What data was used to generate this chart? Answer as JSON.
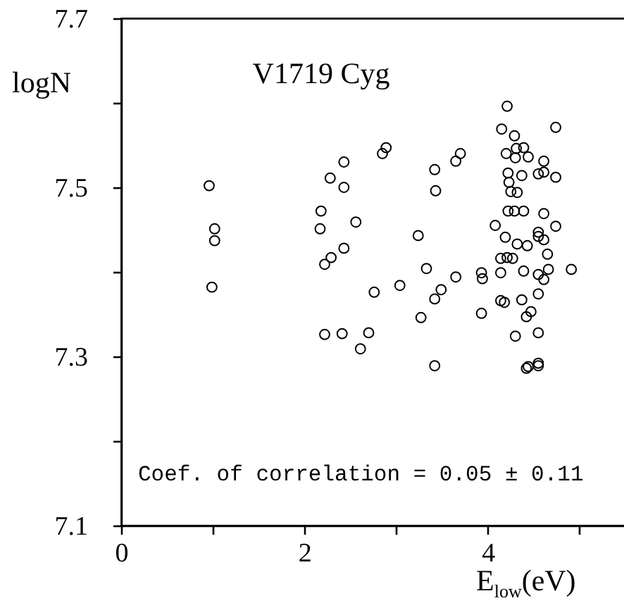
{
  "chart_data": {
    "type": "scatter",
    "title": "V1719 Cyg",
    "xlabel": "E$_{low}$(eV)",
    "ylabel": "logN",
    "annotations": [
      "Coef. of correlation = 0.05 ± 0.11"
    ],
    "x": [
      0.96,
      1.02,
      1.02,
      0.99,
      2.18,
      2.17,
      2.22,
      2.29,
      2.28,
      2.43,
      2.43,
      2.43,
      2.56,
      2.22,
      2.41,
      2.7,
      2.61,
      2.76,
      2.85,
      2.89,
      3.04,
      3.24,
      3.27,
      3.33,
      3.42,
      3.43,
      3.42,
      3.42,
      3.65,
      3.7,
      3.49,
      3.65,
      3.93,
      3.94,
      3.93,
      4.08,
      4.15,
      4.21,
      4.29,
      4.2,
      4.31,
      4.39,
      4.44,
      4.3,
      4.22,
      4.37,
      4.23,
      4.25,
      4.32,
      4.55,
      4.61,
      4.61,
      4.74,
      4.74,
      4.22,
      4.29,
      4.39,
      4.61,
      4.74,
      4.19,
      4.32,
      4.43,
      4.55,
      4.55,
      4.61,
      4.65,
      4.14,
      4.21,
      4.27,
      4.14,
      4.39,
      4.55,
      4.61,
      4.66,
      4.91,
      4.14,
      4.18,
      4.37,
      4.55,
      4.47,
      4.42,
      4.3,
      4.55,
      4.42,
      4.44,
      4.55,
      4.55
    ],
    "series": [
      {
        "color": "#000000",
        "values": [
          7.502,
          7.451,
          7.437,
          7.382,
          7.472,
          7.451,
          7.409,
          7.417,
          7.511,
          7.53,
          7.5,
          7.428,
          7.459,
          7.326,
          7.327,
          7.328,
          7.309,
          7.376,
          7.54,
          7.547,
          7.384,
          7.443,
          7.346,
          7.404,
          7.521,
          7.496,
          7.368,
          7.289,
          7.531,
          7.54,
          7.379,
          7.394,
          7.399,
          7.392,
          7.351,
          7.455,
          7.569,
          7.596,
          7.561,
          7.54,
          7.546,
          7.547,
          7.536,
          7.535,
          7.517,
          7.514,
          7.506,
          7.495,
          7.494,
          7.516,
          7.518,
          7.531,
          7.571,
          7.512,
          7.472,
          7.472,
          7.472,
          7.469,
          7.454,
          7.441,
          7.433,
          7.431,
          7.447,
          7.442,
          7.438,
          7.421,
          7.416,
          7.417,
          7.416,
          7.399,
          7.401,
          7.397,
          7.391,
          7.403,
          7.403,
          7.366,
          7.364,
          7.367,
          7.374,
          7.353,
          7.347,
          7.324,
          7.328,
          7.286,
          7.288,
          7.292,
          7.289
        ]
      }
    ],
    "xlim": [
      0,
      5.5
    ],
    "ylim": [
      7.1,
      7.7
    ],
    "xticks": [
      0,
      {
        "value": 1,
        "label": null
      },
      2,
      {
        "value": 3,
        "label": null
      },
      4,
      {
        "value": 5,
        "label": null
      }
    ],
    "yticks": [
      7.1,
      {
        "value": 7.2,
        "label": null
      },
      7.3,
      {
        "value": 7.4,
        "label": null
      },
      7.5,
      {
        "value": 7.6,
        "label": null
      },
      7.7
    ],
    "marker": "circle"
  }
}
